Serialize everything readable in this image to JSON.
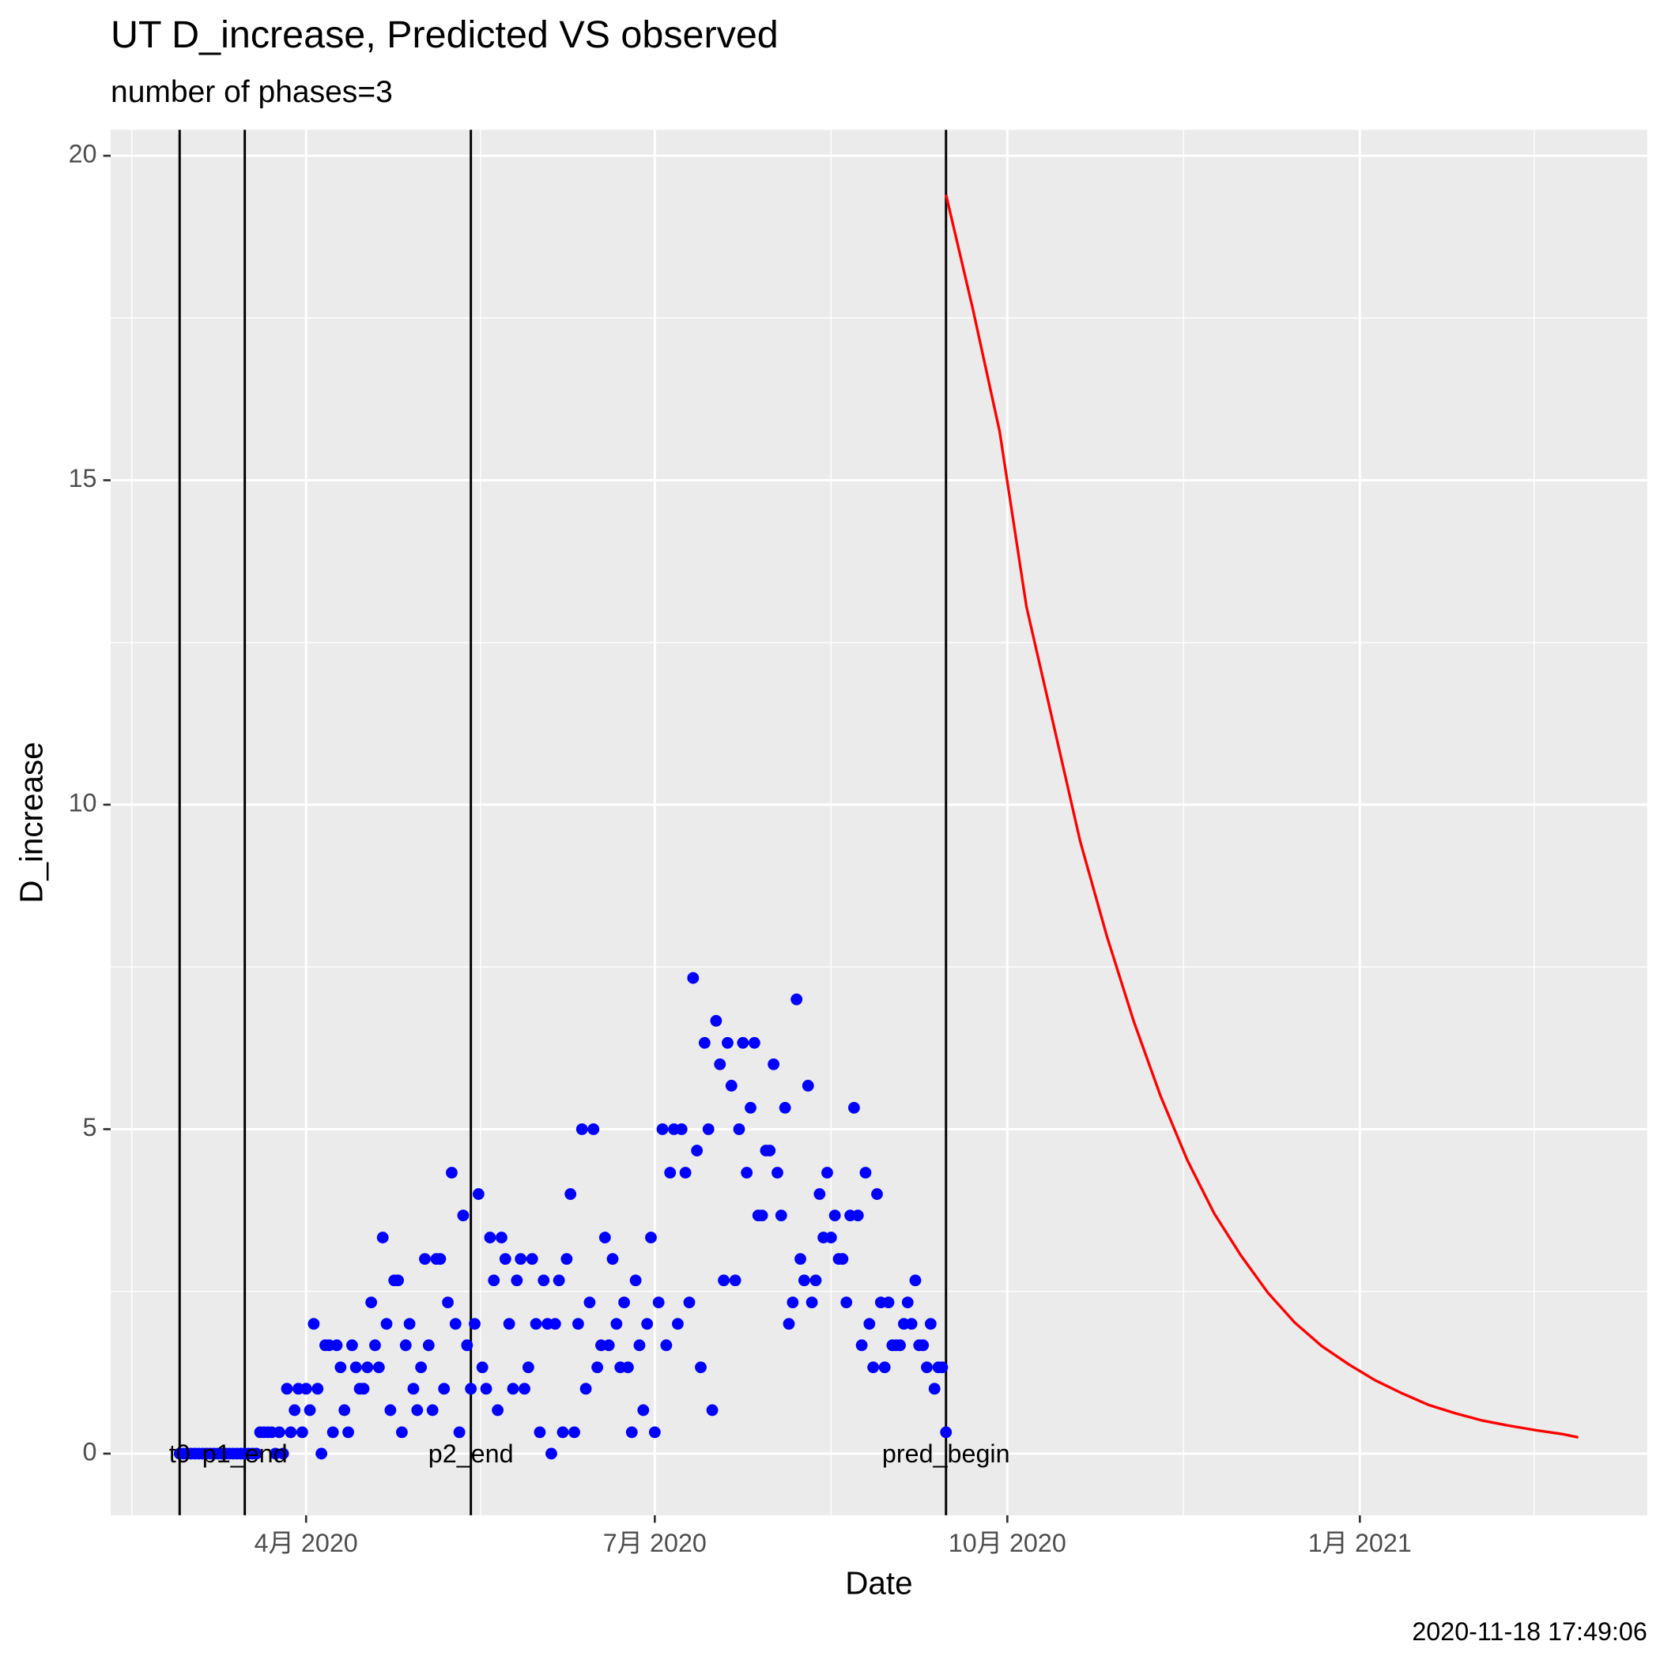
{
  "chart_data": {
    "type": "scatter",
    "title": "UT D_increase, Predicted VS observed",
    "subtitle": "number of phases=3",
    "x_label": "Date",
    "y_label": "D_increase",
    "caption": "2020-11-18 17:49:06",
    "xlim": [
      "2020-02-10",
      "2021-03-17"
    ],
    "xticks": [
      {
        "value": "2020-04-01",
        "label": "4月 2020"
      },
      {
        "value": "2020-07-01",
        "label": "7月 2020"
      },
      {
        "value": "2020-10-01",
        "label": "10月 2020"
      },
      {
        "value": "2021-01-01",
        "label": "1月 2021"
      }
    ],
    "ylim": [
      -0.95,
      20.4
    ],
    "yticks": [
      0,
      5,
      10,
      15,
      20
    ],
    "grid": true,
    "vlines": [
      {
        "x": "2020-02-28",
        "label": "t0"
      },
      {
        "x": "2020-03-16",
        "label": "p1_end"
      },
      {
        "x": "2020-05-14",
        "label": "p2_end"
      },
      {
        "x": "2020-09-15",
        "label": "pred_begin"
      }
    ],
    "series": [
      {
        "type": "scatter",
        "color": "#0000ff",
        "x": [
          "2020-02-28",
          "2020-02-29",
          "2020-03-01",
          "2020-03-02",
          "2020-03-03",
          "2020-03-04",
          "2020-03-05",
          "2020-03-06",
          "2020-03-07",
          "2020-03-08",
          "2020-03-09",
          "2020-03-10",
          "2020-03-11",
          "2020-03-12",
          "2020-03-13",
          "2020-03-14",
          "2020-03-15",
          "2020-03-16",
          "2020-03-17",
          "2020-03-18",
          "2020-03-19",
          "2020-03-20",
          "2020-03-21",
          "2020-03-22",
          "2020-03-23",
          "2020-03-24",
          "2020-03-25",
          "2020-03-26",
          "2020-03-27",
          "2020-03-28",
          "2020-03-29",
          "2020-03-30",
          "2020-03-31",
          "2020-04-01",
          "2020-04-02",
          "2020-04-03",
          "2020-04-04",
          "2020-04-05",
          "2020-04-06",
          "2020-04-07",
          "2020-04-08",
          "2020-04-09",
          "2020-04-10",
          "2020-04-11",
          "2020-04-12",
          "2020-04-13",
          "2020-04-14",
          "2020-04-15",
          "2020-04-16",
          "2020-04-17",
          "2020-04-18",
          "2020-04-19",
          "2020-04-20",
          "2020-04-21",
          "2020-04-22",
          "2020-04-23",
          "2020-04-24",
          "2020-04-25",
          "2020-04-26",
          "2020-04-27",
          "2020-04-28",
          "2020-04-29",
          "2020-04-30",
          "2020-05-01",
          "2020-05-02",
          "2020-05-03",
          "2020-05-04",
          "2020-05-05",
          "2020-05-06",
          "2020-05-07",
          "2020-05-08",
          "2020-05-09",
          "2020-05-10",
          "2020-05-11",
          "2020-05-12",
          "2020-05-13",
          "2020-05-14",
          "2020-05-15",
          "2020-05-16",
          "2020-05-17",
          "2020-05-18",
          "2020-05-19",
          "2020-05-20",
          "2020-05-21",
          "2020-05-22",
          "2020-05-23",
          "2020-05-24",
          "2020-05-25",
          "2020-05-26",
          "2020-05-27",
          "2020-05-28",
          "2020-05-29",
          "2020-05-30",
          "2020-05-31",
          "2020-06-01",
          "2020-06-02",
          "2020-06-03",
          "2020-06-04",
          "2020-06-05",
          "2020-06-06",
          "2020-06-07",
          "2020-06-08",
          "2020-06-09",
          "2020-06-10",
          "2020-06-11",
          "2020-06-12",
          "2020-06-13",
          "2020-06-14",
          "2020-06-15",
          "2020-06-16",
          "2020-06-17",
          "2020-06-18",
          "2020-06-19",
          "2020-06-20",
          "2020-06-21",
          "2020-06-22",
          "2020-06-23",
          "2020-06-24",
          "2020-06-25",
          "2020-06-26",
          "2020-06-27",
          "2020-06-28",
          "2020-06-29",
          "2020-06-30",
          "2020-07-01",
          "2020-07-02",
          "2020-07-03",
          "2020-07-04",
          "2020-07-05",
          "2020-07-06",
          "2020-07-07",
          "2020-07-08",
          "2020-07-09",
          "2020-07-10",
          "2020-07-11",
          "2020-07-12",
          "2020-07-13",
          "2020-07-14",
          "2020-07-15",
          "2020-07-16",
          "2020-07-17",
          "2020-07-18",
          "2020-07-19",
          "2020-07-20",
          "2020-07-21",
          "2020-07-22",
          "2020-07-23",
          "2020-07-24",
          "2020-07-25",
          "2020-07-26",
          "2020-07-27",
          "2020-07-28",
          "2020-07-29",
          "2020-07-30",
          "2020-07-31",
          "2020-08-01",
          "2020-08-02",
          "2020-08-03",
          "2020-08-04",
          "2020-08-05",
          "2020-08-06",
          "2020-08-07",
          "2020-08-08",
          "2020-08-09",
          "2020-08-10",
          "2020-08-11",
          "2020-08-12",
          "2020-08-13",
          "2020-08-14",
          "2020-08-15",
          "2020-08-16",
          "2020-08-17",
          "2020-08-18",
          "2020-08-19",
          "2020-08-20",
          "2020-08-21",
          "2020-08-22",
          "2020-08-23",
          "2020-08-24",
          "2020-08-25",
          "2020-08-26",
          "2020-08-27",
          "2020-08-28",
          "2020-08-29",
          "2020-08-30",
          "2020-08-31",
          "2020-09-01",
          "2020-09-02",
          "2020-09-03",
          "2020-09-04",
          "2020-09-05",
          "2020-09-06",
          "2020-09-07",
          "2020-09-08",
          "2020-09-09",
          "2020-09-10",
          "2020-09-11",
          "2020-09-12",
          "2020-09-13",
          "2020-09-14",
          "2020-09-15"
        ],
        "values": [
          0,
          0,
          0,
          0,
          0,
          0,
          0,
          0,
          0,
          0,
          0,
          0,
          0,
          0,
          0,
          0,
          0,
          0,
          0,
          0,
          0,
          0.33,
          0.33,
          0.33,
          0.33,
          0,
          0.33,
          0,
          1,
          0.33,
          0.67,
          1,
          0.33,
          1,
          0.67,
          2,
          1,
          0,
          1.67,
          1.67,
          0.33,
          1.67,
          1.33,
          0.67,
          0.33,
          1.67,
          1.33,
          1,
          1,
          1.33,
          2.33,
          1.67,
          1.33,
          3.33,
          2,
          0.67,
          2.67,
          2.67,
          0.33,
          1.67,
          2,
          1,
          0.67,
          1.33,
          3,
          1.67,
          0.67,
          3,
          3,
          1,
          2.33,
          4.33,
          2,
          0.33,
          3.67,
          1.67,
          1,
          2,
          4,
          1.33,
          1,
          3.33,
          2.67,
          0.67,
          3.33,
          3,
          2,
          1,
          2.67,
          3,
          1,
          1.33,
          3,
          2,
          0.33,
          2.67,
          2,
          0,
          2,
          2.67,
          0.33,
          3,
          4,
          0.33,
          2,
          5,
          1,
          2.33,
          5,
          1.33,
          1.67,
          3.33,
          1.67,
          3,
          2,
          1.33,
          2.33,
          1.33,
          0.33,
          2.67,
          1.67,
          0.67,
          2,
          3.33,
          0.33,
          2.33,
          5,
          1.67,
          4.33,
          5,
          2,
          5,
          4.33,
          2.33,
          7.33,
          4.67,
          1.33,
          6.33,
          5,
          0.67,
          6.67,
          6,
          2.67,
          6.33,
          5.67,
          2.67,
          5,
          6.33,
          4.33,
          5.33,
          6.33,
          3.67,
          3.67,
          4.67,
          4.67,
          6,
          4.33,
          3.67,
          5.33,
          2,
          2.33,
          7,
          3,
          2.67,
          5.67,
          2.33,
          2.67,
          4,
          3.33,
          4.33,
          3.33,
          3.67,
          3,
          3,
          2.33,
          3.67,
          5.33,
          3.67,
          1.67,
          4.33,
          2,
          1.33,
          4,
          2.33,
          1.33,
          2.33,
          1.67,
          1.67,
          1.67,
          2,
          2.33,
          2,
          2.67,
          1.67,
          1.67,
          1.33,
          2,
          1,
          1.33,
          1.33,
          0.33
        ]
      },
      {
        "type": "line",
        "color": "#ff0000",
        "x": [
          "2020-09-15",
          "2020-09-22",
          "2020-09-29",
          "2020-10-06",
          "2020-10-13",
          "2020-10-20",
          "2020-10-27",
          "2020-11-03",
          "2020-11-10",
          "2020-11-17",
          "2020-11-24",
          "2020-12-01",
          "2020-12-08",
          "2020-12-15",
          "2020-12-22",
          "2020-12-29",
          "2021-01-05",
          "2021-01-12",
          "2021-01-19",
          "2021-01-26",
          "2021-02-02",
          "2021-02-09",
          "2021-02-16",
          "2021-02-23",
          "2021-02-27"
        ],
        "values": [
          19.4,
          17.64,
          15.75,
          13.05,
          11.25,
          9.44,
          7.97,
          6.66,
          5.51,
          4.52,
          3.7,
          3.05,
          2.48,
          2.02,
          1.66,
          1.38,
          1.13,
          0.93,
          0.75,
          0.62,
          0.51,
          0.43,
          0.36,
          0.3,
          0.25
        ]
      }
    ]
  }
}
